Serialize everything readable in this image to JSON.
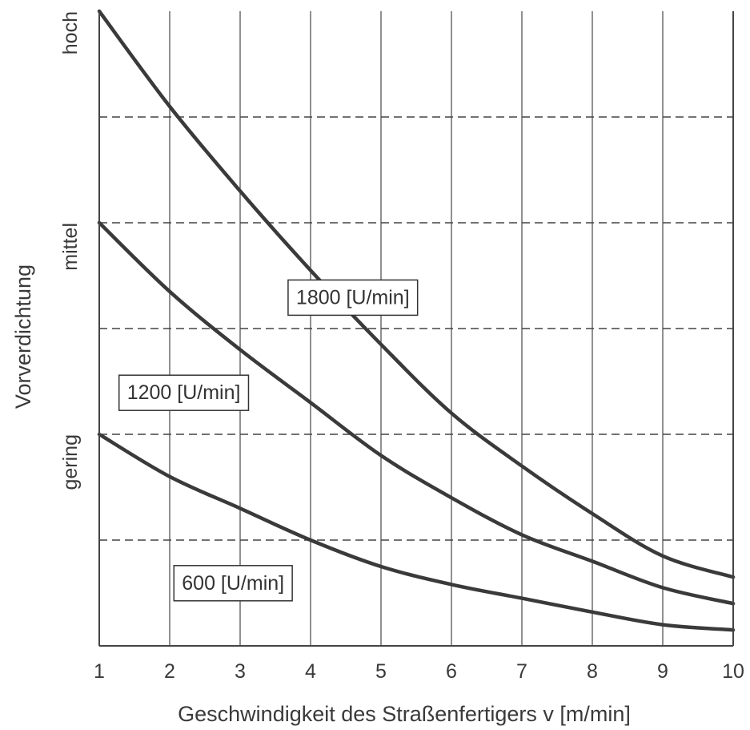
{
  "chart_data": {
    "type": "line",
    "xlabel": "Geschwindigkeit des Straßenfertigers v [m/min]",
    "ylabel": "Vorverdichtung",
    "xlim": [
      1,
      10
    ],
    "ylim": [
      0,
      6
    ],
    "x_ticks": [
      "1",
      "2",
      "3",
      "4",
      "5",
      "6",
      "7",
      "8",
      "9",
      "10"
    ],
    "y_category_ticks": [
      {
        "label": "gering",
        "y": 2
      },
      {
        "label": "mittel",
        "y": 4
      },
      {
        "label": "hoch",
        "y": 6
      }
    ],
    "grid": {
      "vertical": "solid",
      "horizontal": "dashed",
      "horizontal_step": 1
    },
    "series": [
      {
        "name": "1800 [U/min]",
        "x": [
          1,
          2,
          3,
          4,
          5,
          6,
          7,
          8,
          9,
          10
        ],
        "y": [
          6.0,
          5.1,
          4.3,
          3.55,
          2.85,
          2.2,
          1.7,
          1.25,
          0.85,
          0.65
        ]
      },
      {
        "name": "1200 [U/min]",
        "x": [
          1,
          2,
          3,
          4,
          5,
          6,
          7,
          8,
          9,
          10
        ],
        "y": [
          4.0,
          3.35,
          2.8,
          2.3,
          1.8,
          1.4,
          1.05,
          0.8,
          0.55,
          0.4
        ]
      },
      {
        "name": "600 [U/min]",
        "x": [
          1,
          2,
          3,
          4,
          5,
          6,
          7,
          8,
          9,
          10
        ],
        "y": [
          2.0,
          1.6,
          1.3,
          1.0,
          0.75,
          0.58,
          0.45,
          0.32,
          0.2,
          0.15
        ]
      }
    ]
  }
}
